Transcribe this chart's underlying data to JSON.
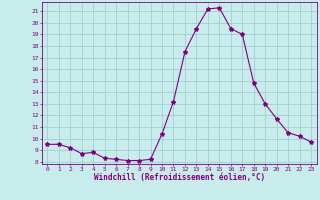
{
  "x": [
    0,
    1,
    2,
    3,
    4,
    5,
    6,
    7,
    8,
    9,
    10,
    11,
    12,
    13,
    14,
    15,
    16,
    17,
    18,
    19,
    20,
    21,
    22,
    23
  ],
  "y": [
    9.5,
    9.5,
    9.2,
    8.7,
    8.8,
    8.3,
    8.2,
    8.1,
    8.1,
    8.2,
    10.4,
    13.2,
    17.5,
    19.5,
    21.2,
    21.3,
    19.5,
    19.0,
    14.8,
    13.0,
    11.7,
    10.5,
    10.2,
    9.7
  ],
  "line_color": "#800080",
  "marker": "*",
  "marker_color": "#800080",
  "bg_color": "#c8ecec",
  "grid_color": "#a0d0d0",
  "xlabel": "Windchill (Refroidissement éolien,°C)",
  "xlabel_color": "#800080",
  "tick_color": "#800080",
  "ylim": [
    7.8,
    21.8
  ],
  "yticks": [
    8,
    9,
    10,
    11,
    12,
    13,
    14,
    15,
    16,
    17,
    18,
    19,
    20,
    21
  ],
  "xticks": [
    0,
    1,
    2,
    3,
    4,
    5,
    6,
    7,
    8,
    9,
    10,
    11,
    12,
    13,
    14,
    15,
    16,
    17,
    18,
    19,
    20,
    21,
    22,
    23
  ]
}
